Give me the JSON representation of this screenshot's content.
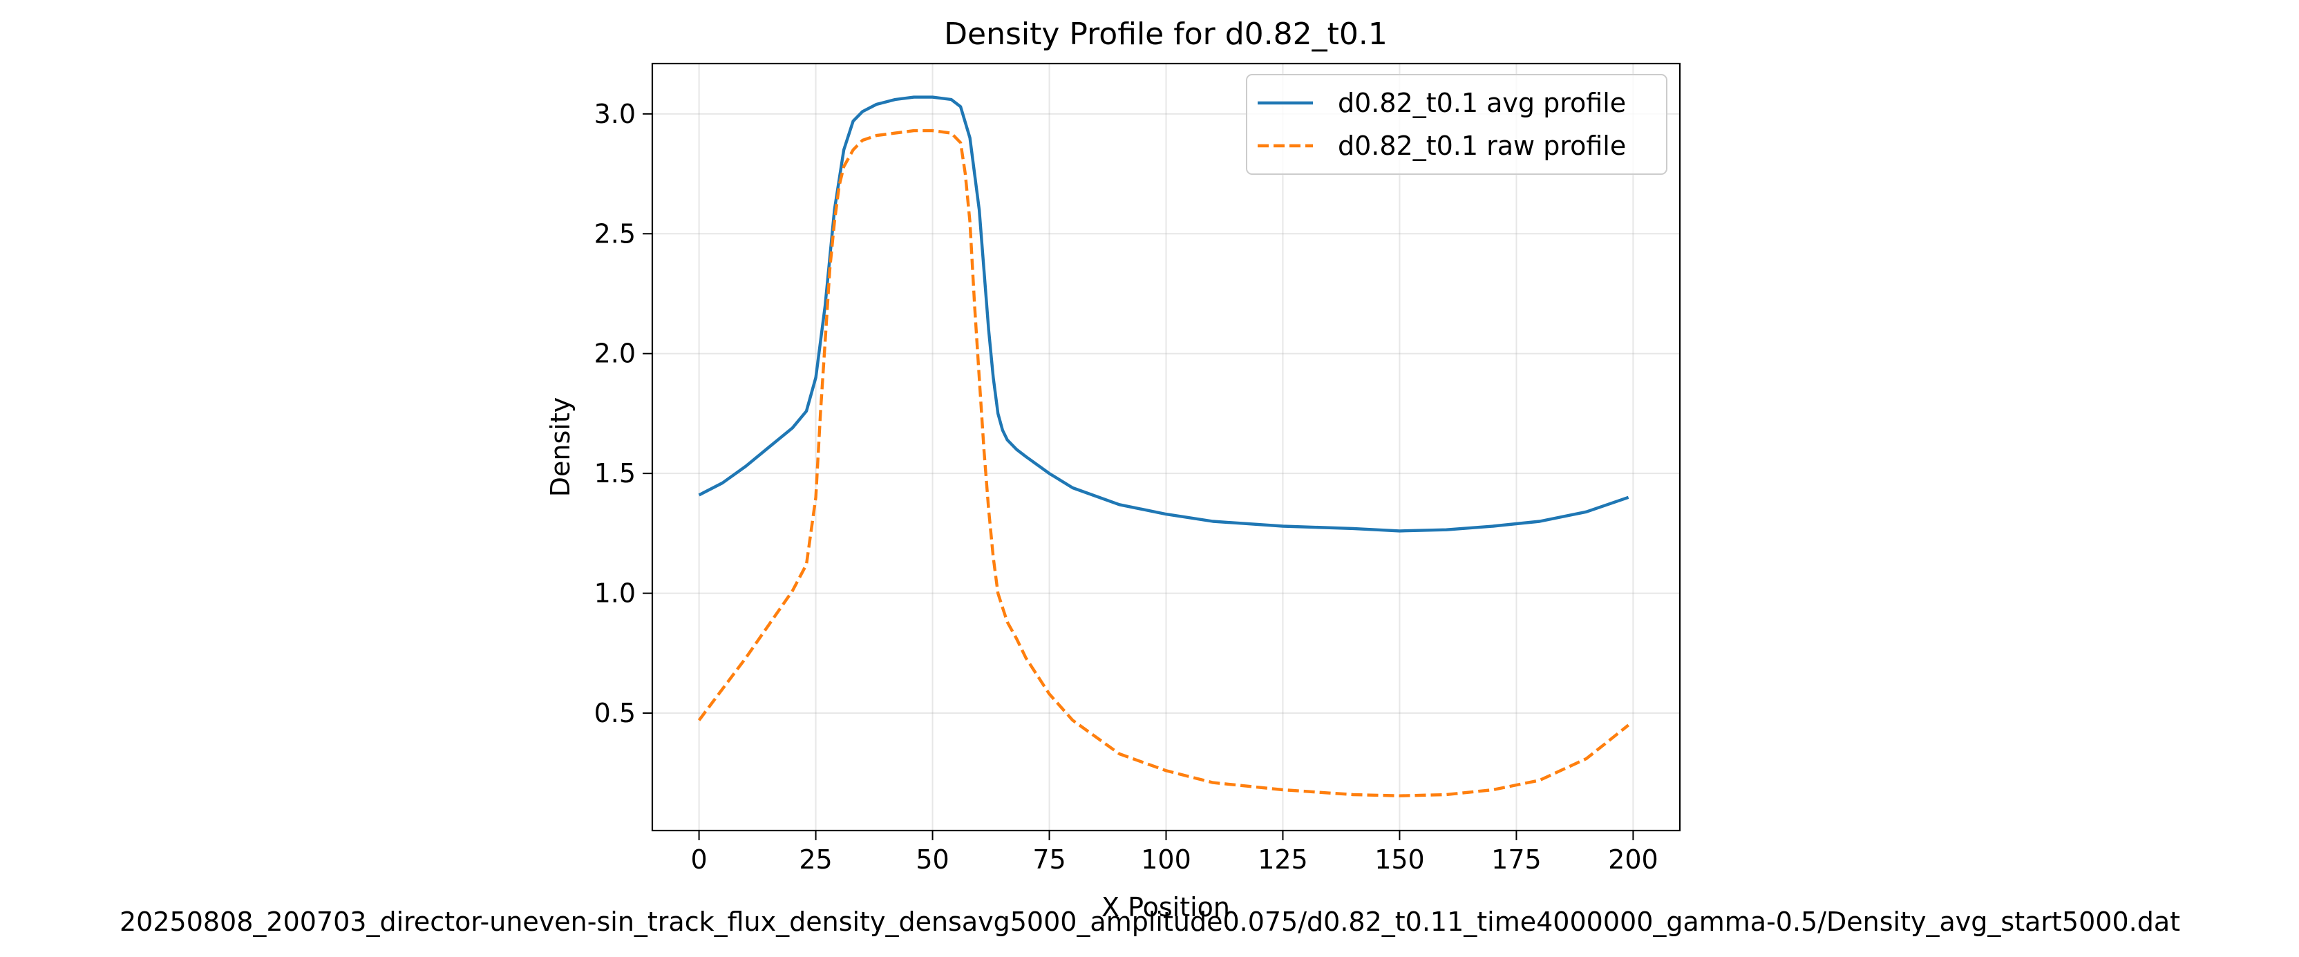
{
  "chart_data": {
    "type": "line",
    "title": "Density Profile for d0.82_t0.1",
    "xlabel": "X Position",
    "ylabel": "Density",
    "caption": "20250808_200703_director-uneven-sin_track_flux_density_densavg5000_amplitude0.075/d0.82_t0.11_time4000000_gamma-0.5/Density_avg_start5000.dat",
    "xlim": [
      -10,
      210
    ],
    "ylim": [
      0.01,
      3.21
    ],
    "xticks": [
      0,
      25,
      50,
      75,
      100,
      125,
      150,
      175,
      200
    ],
    "yticks": [
      0.5,
      1.0,
      1.5,
      2.0,
      2.5,
      3.0
    ],
    "xtick_labels": [
      "0",
      "25",
      "50",
      "75",
      "100",
      "125",
      "150",
      "175",
      "200"
    ],
    "ytick_labels": [
      "0.5",
      "1.0",
      "1.5",
      "2.0",
      "2.5",
      "3.0"
    ],
    "grid": true,
    "legend_position": "upper right",
    "series": [
      {
        "name": "d0.82_t0.1 avg profile",
        "color": "#1f77b4",
        "dash": "solid",
        "x": [
          0,
          5,
          10,
          15,
          20,
          23,
          25,
          27,
          29,
          31,
          33,
          35,
          38,
          42,
          46,
          50,
          54,
          56,
          58,
          60,
          61,
          62,
          63,
          64,
          65,
          66,
          68,
          70,
          75,
          80,
          90,
          100,
          110,
          125,
          140,
          150,
          160,
          170,
          180,
          190,
          199
        ],
        "y": [
          1.41,
          1.46,
          1.53,
          1.61,
          1.69,
          1.76,
          1.9,
          2.2,
          2.6,
          2.85,
          2.97,
          3.01,
          3.04,
          3.06,
          3.07,
          3.07,
          3.06,
          3.03,
          2.9,
          2.6,
          2.35,
          2.1,
          1.9,
          1.75,
          1.68,
          1.64,
          1.6,
          1.57,
          1.5,
          1.44,
          1.37,
          1.33,
          1.3,
          1.28,
          1.27,
          1.26,
          1.265,
          1.28,
          1.3,
          1.34,
          1.4
        ]
      },
      {
        "name": "d0.82_t0.1 raw profile",
        "color": "#ff7f0e",
        "dash": "dashed",
        "x": [
          0,
          5,
          10,
          15,
          20,
          23,
          25,
          26,
          27,
          28,
          29,
          30,
          31,
          33,
          35,
          38,
          42,
          46,
          50,
          54,
          56,
          57,
          58,
          59,
          60,
          61,
          62,
          63,
          64,
          65,
          66,
          68,
          70,
          75,
          80,
          90,
          100,
          110,
          125,
          140,
          150,
          160,
          170,
          180,
          190,
          199
        ],
        "y": [
          0.47,
          0.6,
          0.73,
          0.87,
          1.01,
          1.12,
          1.4,
          1.75,
          2.05,
          2.35,
          2.55,
          2.7,
          2.78,
          2.85,
          2.89,
          2.91,
          2.92,
          2.93,
          2.93,
          2.92,
          2.88,
          2.75,
          2.55,
          2.2,
          1.9,
          1.6,
          1.35,
          1.15,
          1.0,
          0.94,
          0.88,
          0.81,
          0.73,
          0.58,
          0.47,
          0.33,
          0.26,
          0.21,
          0.18,
          0.16,
          0.155,
          0.16,
          0.18,
          0.22,
          0.31,
          0.45
        ]
      }
    ]
  }
}
